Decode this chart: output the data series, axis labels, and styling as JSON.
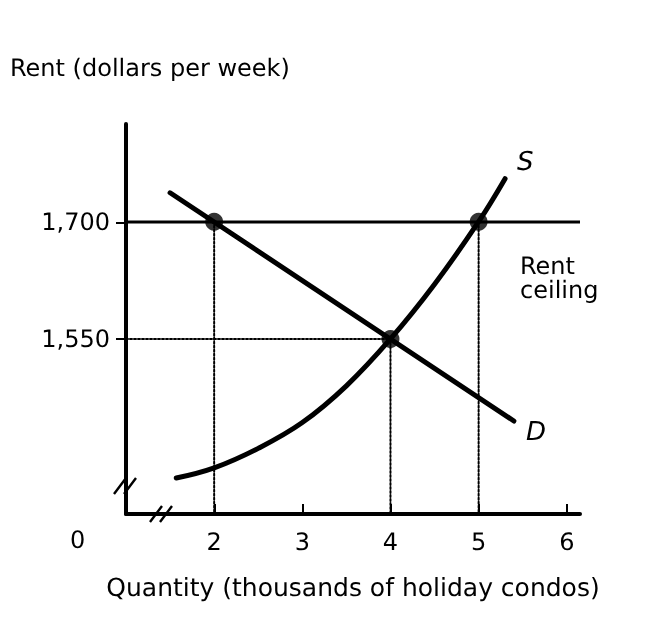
{
  "chart_data": {
    "type": "line",
    "xlabel": "Quantity (thousands of holiday condos)",
    "ylabel": "Rent (dollars per week)",
    "xlim": [
      1.0,
      6.15
    ],
    "ylim": [
      1326,
      1825
    ],
    "xticks": [
      2,
      3,
      4,
      5,
      6
    ],
    "yticks": [
      {
        "value": 1550,
        "label": "1,550"
      },
      {
        "value": 1700,
        "label": "1,700"
      }
    ],
    "series": [
      {
        "name": "S",
        "color": "#000000",
        "x": [
          1.57,
          2,
          2.5,
          3,
          3.5,
          4,
          4.5,
          5,
          5.3
        ],
        "values": [
          1372,
          1385,
          1410,
          1443,
          1490,
          1550,
          1620,
          1700,
          1755
        ]
      },
      {
        "name": "D",
        "color": "#000000",
        "x": [
          1.5,
          5.4
        ],
        "values": [
          1737,
          1445
        ]
      },
      {
        "color": "#000000",
        "line_style": "dotted",
        "x": [
          2,
          2
        ],
        "values": [
          1700,
          1326
        ]
      },
      {
        "color": "#000000",
        "line_style": "dotted",
        "x": [
          4,
          4
        ],
        "values": [
          1550,
          1326
        ]
      },
      {
        "color": "#000000",
        "line_style": "dotted",
        "x": [
          1.0,
          4
        ],
        "values": [
          1550,
          1550
        ]
      },
      {
        "color": "#000000",
        "line_style": "dotted",
        "x": [
          5,
          5
        ],
        "values": [
          1700,
          1326
        ]
      },
      {
        "type": "scatter",
        "color": "#000000",
        "marker": "circle",
        "x": [
          2,
          4,
          5
        ],
        "values": [
          1700,
          1550,
          1700
        ]
      }
    ],
    "ref_lines": [
      {
        "axis": "y",
        "value": 1700,
        "label": "Rent ceiling"
      }
    ],
    "annotations": [
      "0"
    ],
    "legend": false,
    "line_style": "solid",
    "marker": "none"
  }
}
